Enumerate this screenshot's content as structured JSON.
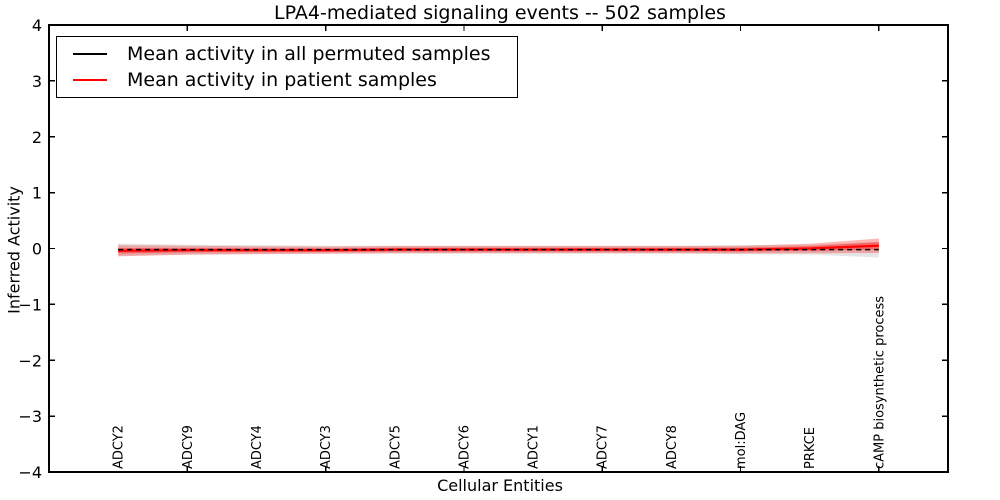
{
  "figure": {
    "bg": "#ffffff",
    "frame_color": "#000000"
  },
  "chart_data": {
    "type": "line",
    "title": "LPA4-mediated signaling events -- 502 samples",
    "xlabel": "Cellular Entities",
    "ylabel": "Inferred Activity",
    "ylim": [
      -4,
      4
    ],
    "yticks": [
      4,
      3,
      2,
      1,
      0,
      -1,
      -2,
      -3,
      -4
    ],
    "grid": false,
    "legend_position": "upper-left",
    "categories": [
      "ADCY2",
      "ADCY9",
      "ADCY4",
      "ADCY3",
      "ADCY5",
      "ADCY6",
      "ADCY1",
      "ADCY7",
      "ADCY8",
      "mol:DAG",
      "PRKCE",
      "cAMP biosynthetic process"
    ],
    "series": [
      {
        "name": "Mean activity in all permuted samples",
        "color": "#000000",
        "line_style": "dashed",
        "values": [
          -0.02,
          -0.02,
          -0.02,
          -0.02,
          -0.02,
          -0.02,
          -0.02,
          -0.02,
          -0.02,
          -0.02,
          -0.02,
          -0.02
        ]
      },
      {
        "name": "Mean activity in patient samples",
        "color": "#ff0000",
        "line_style": "solid",
        "values": [
          -0.04,
          -0.03,
          -0.03,
          -0.03,
          -0.02,
          -0.02,
          -0.02,
          -0.02,
          -0.02,
          -0.02,
          0.0,
          0.05
        ]
      }
    ],
    "bands": [
      {
        "label": "permuted-std",
        "center_series": 0,
        "color": "rgba(0,0,0,0.10)",
        "half_widths": [
          0.11,
          0.09,
          0.08,
          0.07,
          0.07,
          0.07,
          0.07,
          0.07,
          0.07,
          0.08,
          0.09,
          0.14
        ]
      },
      {
        "label": "patient-std-outer",
        "center_series": 1,
        "color": "rgba(255,0,0,0.28)",
        "half_widths": [
          0.1,
          0.08,
          0.07,
          0.065,
          0.065,
          0.065,
          0.065,
          0.065,
          0.065,
          0.07,
          0.085,
          0.13
        ]
      },
      {
        "label": "patient-std-inner",
        "center_series": 1,
        "color": "rgba(255,0,0,0.38)",
        "half_widths": [
          0.05,
          0.04,
          0.035,
          0.033,
          0.033,
          0.033,
          0.033,
          0.033,
          0.033,
          0.035,
          0.042,
          0.065
        ]
      }
    ]
  }
}
